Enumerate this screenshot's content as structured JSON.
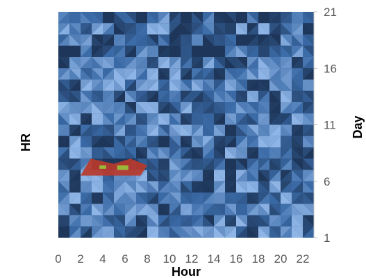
{
  "chart_data": {
    "type": "surface-contour",
    "xlabel": "Hour",
    "ylabel": "HR",
    "y2label": "Day",
    "x_ticks": [
      "0",
      "2",
      "4",
      "6",
      "8",
      "10",
      "12",
      "14",
      "16",
      "18",
      "20",
      "22"
    ],
    "y_ticks": [
      "1",
      "6",
      "11",
      "16",
      "21"
    ],
    "xlim": [
      0,
      23
    ],
    "ylim": [
      1,
      21
    ],
    "grid": false,
    "legend": "none",
    "colors": {
      "low": "#1e3659",
      "mid": "#3a6aa6",
      "high": "#8fb5e6",
      "hotspot_outer": "#b83a2c",
      "hotspot_inner": "#9bb83a"
    },
    "hotspots": [
      {
        "hours": [
          2,
          8
        ],
        "days": [
          6.5,
          8
        ],
        "level": "high"
      },
      {
        "hours": [
          3.7,
          4.3
        ],
        "days": [
          7.1,
          7.4
        ],
        "level": "peak"
      },
      {
        "hours": [
          5.3,
          6.3
        ],
        "days": [
          7.0,
          7.4
        ],
        "level": "peak"
      }
    ]
  }
}
